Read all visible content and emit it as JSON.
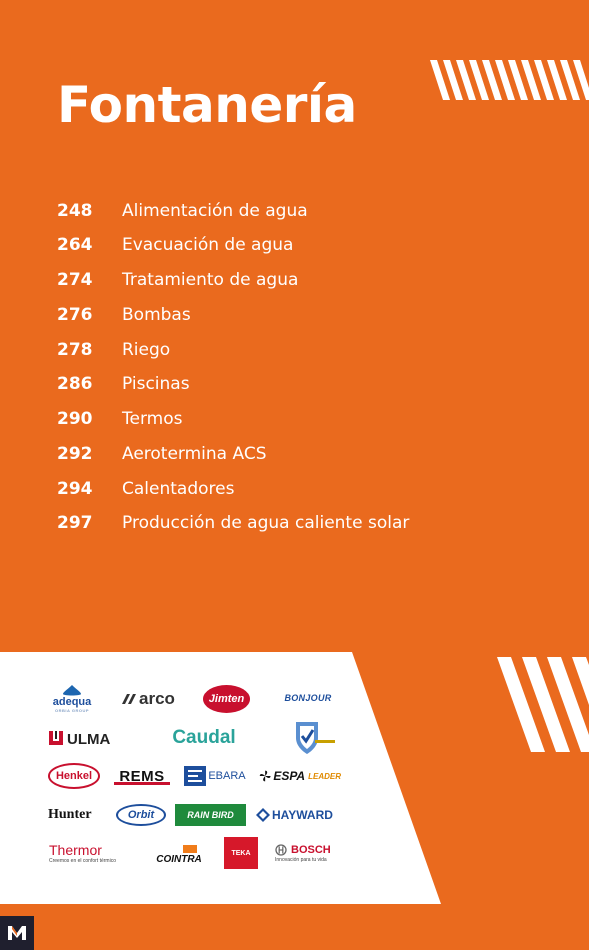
{
  "page": {
    "title": "Fontanería"
  },
  "toc": [
    {
      "page": "248",
      "label": "Alimentación de agua"
    },
    {
      "page": "264",
      "label": "Evacuación de agua"
    },
    {
      "page": "274",
      "label": "Tratamiento de agua"
    },
    {
      "page": "276",
      "label": "Bombas"
    },
    {
      "page": "278",
      "label": "Riego"
    },
    {
      "page": "286",
      "label": "Piscinas"
    },
    {
      "page": "290",
      "label": "Termos"
    },
    {
      "page": "292",
      "label": "Aerotermina ACS"
    },
    {
      "page": "294",
      "label": "Calentadores"
    },
    {
      "page": "297",
      "label": "Producción de agua caliente solar"
    }
  ],
  "brands": {
    "adequa": "adequa",
    "adequa_sub": "ORBIA GROUP",
    "arco": "arco",
    "jimten": "Jimten",
    "bonjour": "BONJOUR",
    "ulma": "ULMA",
    "caudal": "Caudal",
    "henkel": "Henkel",
    "rems": "REMS",
    "ebara": "EBARA",
    "espa": "ESPA",
    "espa_sub": "LEADER",
    "hunter": "Hunter",
    "orbit": "Orbit",
    "rainbird": "RAIN BIRD",
    "hayward": "HAYWARD",
    "thermor": "Thermor",
    "thermor_tagline": "Creemos en el confort térmico",
    "cointra": "COINTRA",
    "teka": "TEKA",
    "bosch": "BOSCH",
    "bosch_tagline": "Innovación para tu vida"
  },
  "footer": {
    "badge": "M"
  },
  "colors": {
    "brand_orange": "#ea6a1e",
    "panel_white": "#ffffff",
    "badge_dark": "#1f1f2e"
  },
  "icons": [
    "diagonal-stripes-decor",
    "m-logo-icon"
  ]
}
